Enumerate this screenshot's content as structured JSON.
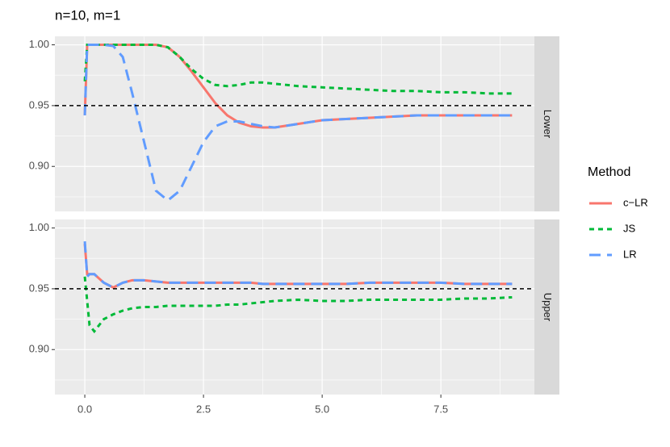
{
  "chart_data": {
    "type": "line",
    "title": "n=10, m=1",
    "legend_title": "Method",
    "x": [
      0,
      0.05,
      0.1,
      0.2,
      0.4,
      0.6,
      0.8,
      1.0,
      1.25,
      1.5,
      1.75,
      2.0,
      2.25,
      2.5,
      2.75,
      3.0,
      3.25,
      3.5,
      3.75,
      4.0,
      4.5,
      5.0,
      5.5,
      6.0,
      6.5,
      7.0,
      7.5,
      8.0,
      8.5,
      9.0
    ],
    "xlim": [
      -0.63,
      9.47
    ],
    "xticks": [
      {
        "value": 0,
        "label": "0.0"
      },
      2.5,
      {
        "value": 5,
        "label": "5.0"
      },
      7.5
    ],
    "x_minor_ticks": [
      1.25,
      3.75,
      6.25,
      8.75
    ],
    "ylim": [
      0.863,
      1.007
    ],
    "yticks": [
      {
        "value": 0.9,
        "label": "0.90"
      },
      0.95,
      {
        "value": 1,
        "label": "1.00"
      }
    ],
    "y_minor_ticks": [
      0.875,
      0.925,
      0.975
    ],
    "hline": 0.95,
    "grid": true,
    "facets": [
      {
        "label": "Lower",
        "series": [
          {
            "name": "c−LR",
            "color": "#F8766D",
            "dash": "solid",
            "values": [
              0.942,
              1.0,
              1.0,
              1.0,
              1.0,
              1.0,
              1.0,
              1.0,
              1.0,
              1.0,
              0.998,
              0.99,
              0.978,
              0.965,
              0.952,
              0.942,
              0.936,
              0.933,
              0.932,
              0.932,
              0.935,
              0.938,
              0.939,
              0.94,
              0.941,
              0.942,
              0.942,
              0.942,
              0.942,
              0.942
            ]
          },
          {
            "name": "JS",
            "color": "#00BA38",
            "dash": "dotted",
            "values": [
              0.97,
              1.0,
              1.0,
              1.0,
              1.0,
              1.0,
              1.0,
              1.0,
              1.0,
              1.0,
              0.998,
              0.99,
              0.98,
              0.972,
              0.967,
              0.966,
              0.967,
              0.969,
              0.969,
              0.968,
              0.966,
              0.965,
              0.964,
              0.963,
              0.962,
              0.962,
              0.961,
              0.961,
              0.96,
              0.96
            ]
          },
          {
            "name": "LR",
            "color": "#619CFF",
            "dash": "dashed",
            "values": [
              0.942,
              1.0,
              1.0,
              1.0,
              1.0,
              0.999,
              0.99,
              0.96,
              0.92,
              0.88,
              0.872,
              0.88,
              0.9,
              0.92,
              0.933,
              0.937,
              0.937,
              0.935,
              0.933,
              0.932,
              0.935,
              0.938,
              0.939,
              0.94,
              0.941,
              0.942,
              0.942,
              0.942,
              0.942,
              0.942
            ]
          }
        ]
      },
      {
        "label": "Upper",
        "series": [
          {
            "name": "c−LR",
            "color": "#F8766D",
            "dash": "solid",
            "values": [
              0.987,
              0.962,
              0.962,
              0.962,
              0.955,
              0.951,
              0.955,
              0.957,
              0.957,
              0.956,
              0.955,
              0.955,
              0.955,
              0.955,
              0.955,
              0.955,
              0.955,
              0.955,
              0.954,
              0.954,
              0.954,
              0.954,
              0.954,
              0.955,
              0.955,
              0.955,
              0.955,
              0.954,
              0.954,
              0.954
            ]
          },
          {
            "name": "JS",
            "color": "#00BA38",
            "dash": "dotted",
            "values": [
              0.96,
              0.94,
              0.92,
              0.915,
              0.925,
              0.929,
              0.932,
              0.934,
              0.935,
              0.935,
              0.936,
              0.936,
              0.936,
              0.936,
              0.936,
              0.937,
              0.937,
              0.938,
              0.939,
              0.94,
              0.941,
              0.94,
              0.94,
              0.941,
              0.941,
              0.941,
              0.941,
              0.942,
              0.942,
              0.943
            ]
          },
          {
            "name": "LR",
            "color": "#619CFF",
            "dash": "dashed",
            "values": [
              0.989,
              0.96,
              0.962,
              0.962,
              0.955,
              0.951,
              0.955,
              0.957,
              0.957,
              0.956,
              0.955,
              0.955,
              0.955,
              0.955,
              0.955,
              0.955,
              0.955,
              0.955,
              0.954,
              0.954,
              0.954,
              0.954,
              0.954,
              0.955,
              0.955,
              0.955,
              0.955,
              0.954,
              0.954,
              0.954
            ]
          }
        ]
      }
    ]
  }
}
